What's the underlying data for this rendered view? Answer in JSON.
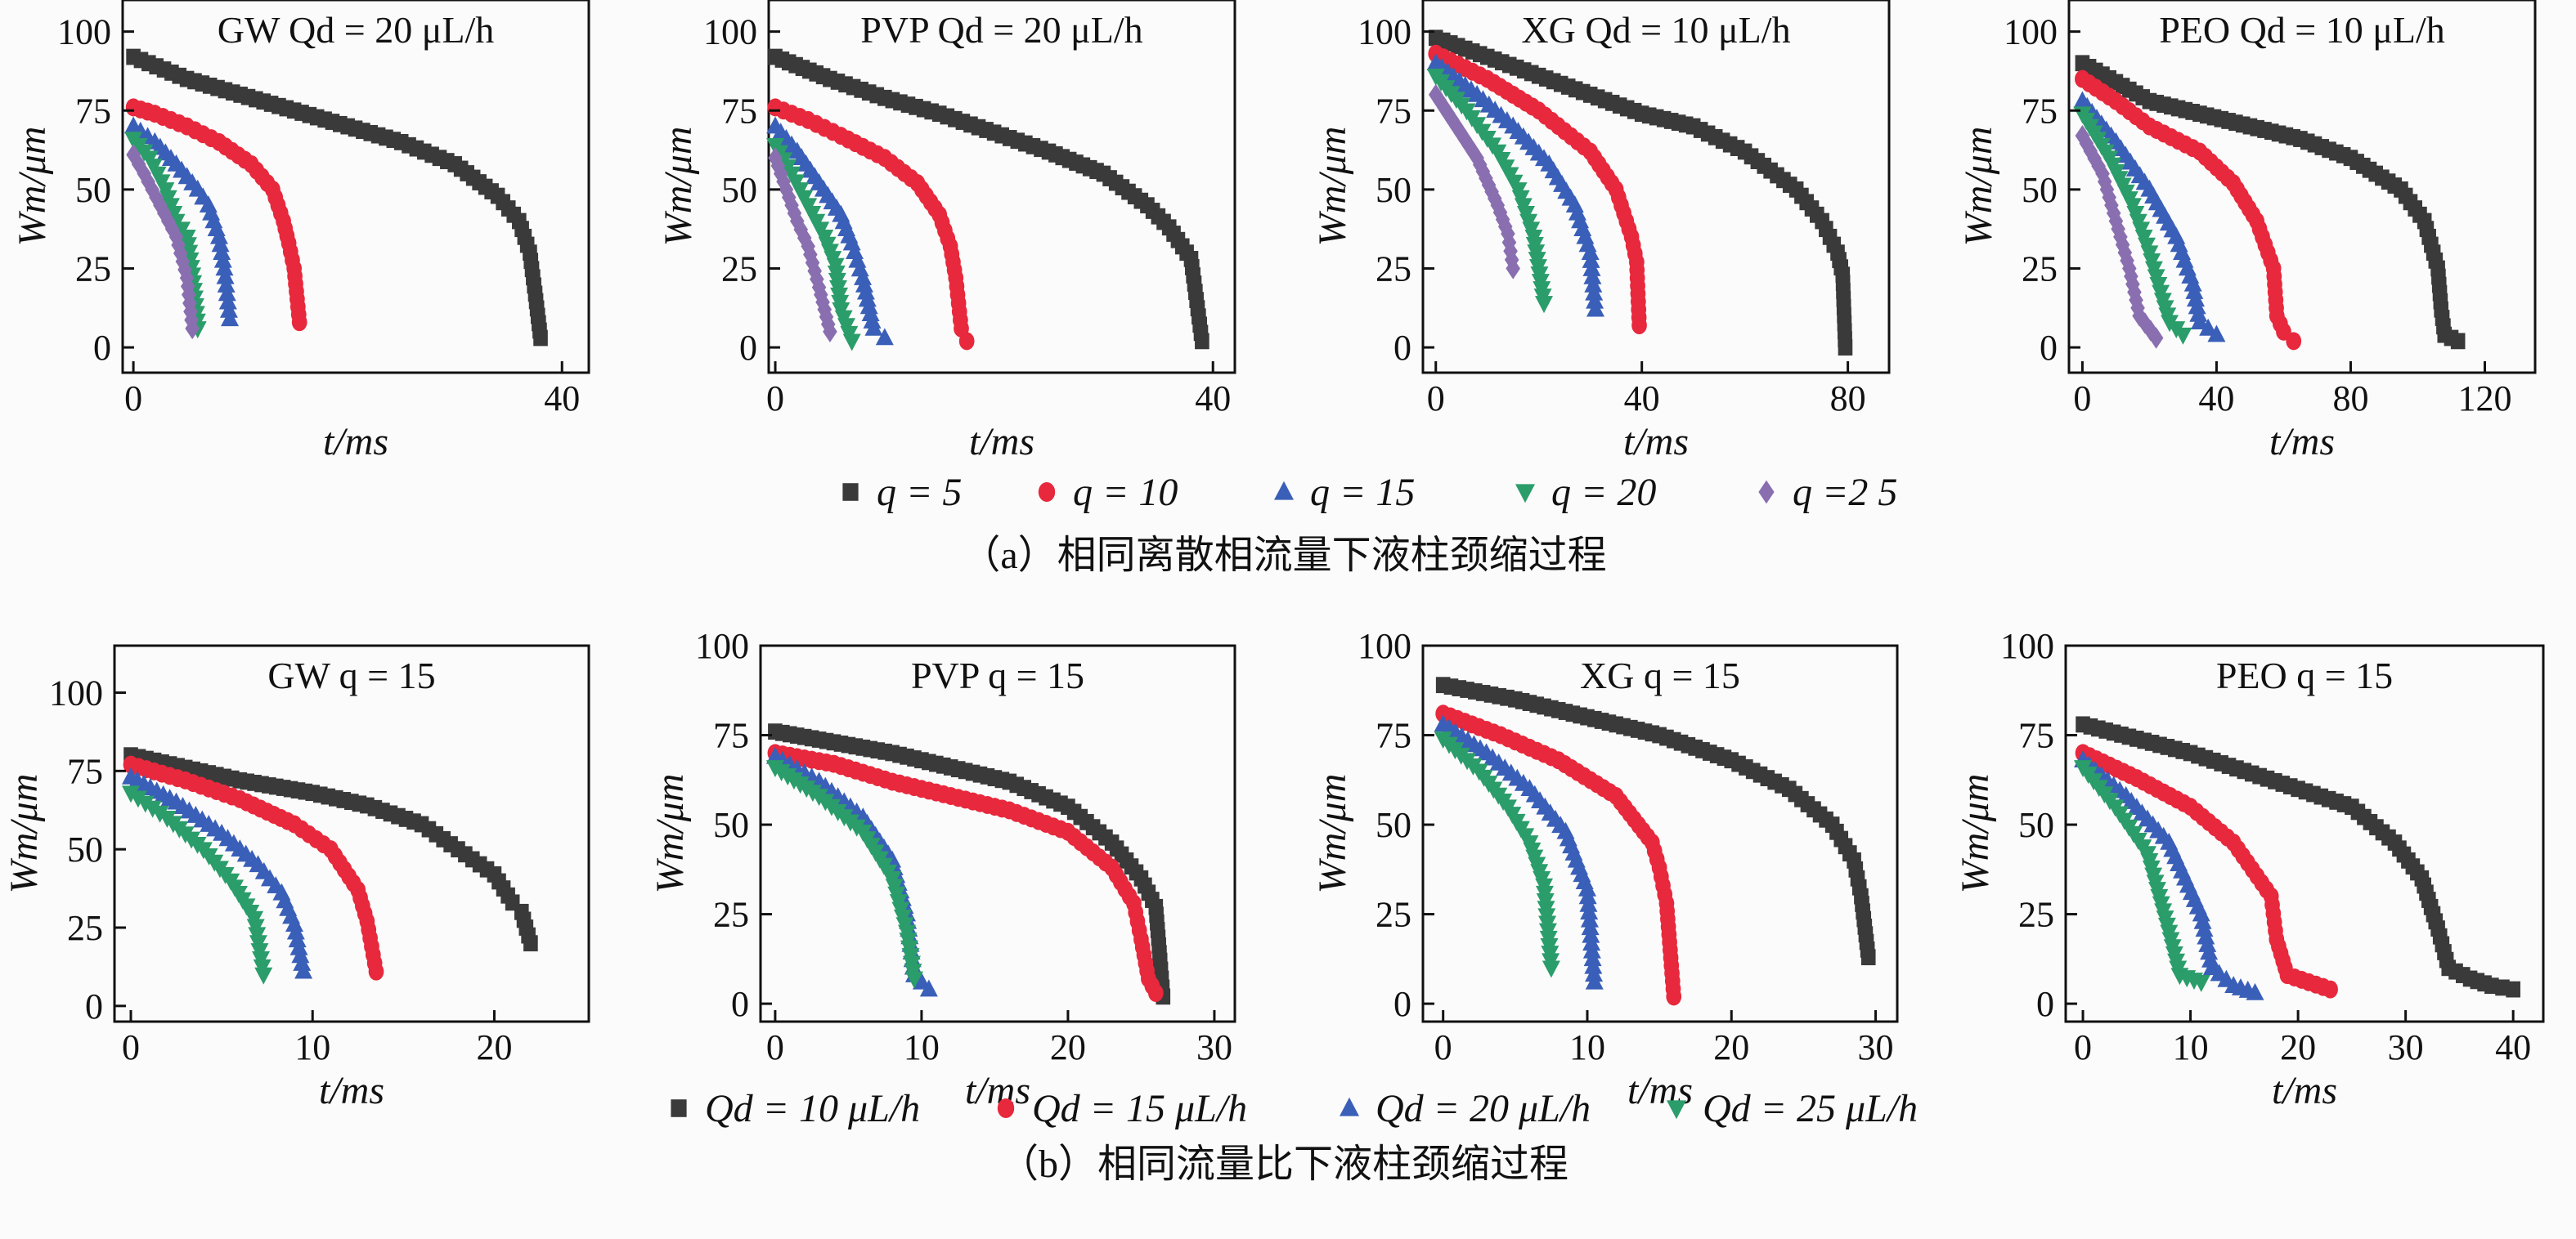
{
  "colors": {
    "s1": "#3a3a3a",
    "s2": "#e8283c",
    "s3": "#3a5fb8",
    "s4": "#2a9d6a",
    "s5": "#8a6fb0"
  },
  "chart_data": [
    {
      "type": "scatter",
      "group": "a",
      "title": "GW  Qd = 20 μL/h",
      "xlabel": "t/ms",
      "ylabel": "Wm/μm",
      "xlim": [
        -1,
        42.5
      ],
      "ylim": [
        -8,
        110
      ],
      "xticks": [
        0,
        40
      ],
      "yticks": [
        0,
        25,
        50,
        75,
        100
      ],
      "series": [
        {
          "name": "q = 5",
          "marker": "square",
          "t": [
            0,
            5,
            10,
            15,
            20,
            25,
            30,
            34,
            36,
            37,
            37.5,
            38
          ],
          "w": [
            92,
            85,
            80,
            75,
            70,
            65,
            58,
            48,
            40,
            30,
            17,
            3
          ]
        },
        {
          "name": "q = 10",
          "marker": "circle",
          "t": [
            0,
            2,
            5,
            8,
            11,
            13,
            14,
            14.5,
            15,
            15.5
          ],
          "w": [
            76,
            74,
            70,
            65,
            58,
            50,
            40,
            33,
            25,
            8
          ]
        },
        {
          "name": "q = 15",
          "marker": "triangle-up",
          "t": [
            0,
            2,
            4,
            6,
            7,
            8,
            8.5,
            9
          ],
          "w": [
            70,
            65,
            58,
            50,
            45,
            35,
            25,
            9
          ]
        },
        {
          "name": "q = 20",
          "marker": "triangle-down",
          "t": [
            0,
            1.5,
            3,
            4,
            5,
            5.5,
            6
          ],
          "w": [
            66,
            60,
            50,
            40,
            35,
            23,
            6
          ]
        },
        {
          "name": "q = 25",
          "marker": "diamond",
          "t": [
            0,
            1,
            2.5,
            4,
            5,
            5.5
          ],
          "w": [
            61,
            55,
            45,
            35,
            22,
            6
          ]
        }
      ]
    },
    {
      "type": "scatter",
      "group": "a",
      "title": "PVP  Qd = 20 μL/h",
      "xlabel": "t/ms",
      "ylabel": "Wm/μm",
      "xlim": [
        -0.6,
        42
      ],
      "ylim": [
        -8,
        110
      ],
      "xticks": [
        0,
        40
      ],
      "yticks": [
        0,
        25,
        50,
        75,
        100
      ],
      "series": [
        {
          "name": "q = 5",
          "marker": "square",
          "t": [
            0,
            5,
            10,
            15,
            20,
            25,
            30,
            34,
            36,
            38,
            38.5,
            39
          ],
          "w": [
            92,
            85,
            79,
            74,
            68,
            62,
            55,
            45,
            38,
            28,
            15,
            2
          ]
        },
        {
          "name": "q = 10",
          "marker": "circle",
          "t": [
            0,
            3,
            6,
            10,
            13,
            15,
            16,
            16.5,
            17,
            17.5
          ],
          "w": [
            76,
            72,
            67,
            60,
            52,
            42,
            32,
            22,
            6,
            2
          ]
        },
        {
          "name": "q = 15",
          "marker": "triangle-up",
          "t": [
            0,
            2,
            4,
            6,
            7,
            8,
            9,
            10
          ],
          "w": [
            70,
            62,
            52,
            42,
            33,
            22,
            6,
            3
          ]
        },
        {
          "name": "q = 20",
          "marker": "triangle-down",
          "t": [
            0,
            1.5,
            3,
            4.5,
            5.5,
            6,
            7
          ],
          "w": [
            64,
            55,
            45,
            35,
            26,
            12,
            2
          ]
        },
        {
          "name": "q = 25",
          "marker": "diamond",
          "t": [
            0,
            1,
            2,
            3,
            4,
            5
          ],
          "w": [
            60,
            50,
            40,
            32,
            19,
            5
          ]
        }
      ]
    },
    {
      "type": "scatter",
      "group": "a",
      "title": "XG  Qd = 10 μL/h",
      "xlabel": "t/ms",
      "ylabel": "Wm/μm",
      "xlim": [
        -2.5,
        88
      ],
      "ylim": [
        -8,
        110
      ],
      "xticks": [
        0,
        40,
        80
      ],
      "yticks": [
        0,
        25,
        50,
        75,
        100
      ],
      "series": [
        {
          "name": "q = 5",
          "marker": "square",
          "t": [
            0,
            10,
            20,
            30,
            40,
            50,
            60,
            70,
            75,
            78,
            79,
            79.5
          ],
          "w": [
            98,
            92,
            86,
            80,
            74,
            70,
            62,
            50,
            40,
            30,
            23,
            0
          ]
        },
        {
          "name": "q = 10",
          "marker": "circle",
          "t": [
            0,
            10,
            20,
            30,
            35,
            38,
            39,
            39.5
          ],
          "w": [
            93,
            85,
            75,
            62,
            50,
            35,
            27,
            7
          ]
        },
        {
          "name": "q = 15",
          "marker": "triangle-up",
          "t": [
            0,
            8,
            15,
            22,
            27,
            30,
            31
          ],
          "w": [
            90,
            80,
            70,
            58,
            45,
            30,
            12
          ]
        },
        {
          "name": "q = 20",
          "marker": "triangle-down",
          "t": [
            0,
            6,
            12,
            16,
            19,
            21
          ],
          "w": [
            86,
            75,
            62,
            50,
            35,
            14
          ]
        },
        {
          "name": "q = 25",
          "marker": "diamond",
          "t": [
            0,
            4,
            8,
            12,
            14,
            15
          ],
          "w": [
            80,
            70,
            60,
            45,
            36,
            25
          ]
        }
      ]
    },
    {
      "type": "scatter",
      "group": "a",
      "title": "PEO  Qd = 10 μL/h",
      "xlabel": "t/ms",
      "ylabel": "Wm/μm",
      "xlim": [
        -4,
        135
      ],
      "ylim": [
        -8,
        110
      ],
      "xticks": [
        0,
        40,
        80,
        120
      ],
      "yticks": [
        0,
        25,
        50,
        75,
        100
      ],
      "series": [
        {
          "name": "q = 5",
          "marker": "square",
          "t": [
            0,
            10,
            20,
            35,
            50,
            65,
            80,
            95,
            102,
            106,
            107,
            108,
            112
          ],
          "w": [
            90,
            84,
            78,
            74,
            70,
            66,
            60,
            50,
            40,
            25,
            12,
            4,
            2
          ]
        },
        {
          "name": "q = 10",
          "marker": "circle",
          "t": [
            0,
            10,
            20,
            35,
            45,
            52,
            57,
            58,
            60,
            63
          ],
          "w": [
            85,
            78,
            70,
            62,
            52,
            40,
            25,
            10,
            5,
            2
          ]
        },
        {
          "name": "q = 15",
          "marker": "triangle-up",
          "t": [
            0,
            10,
            20,
            28,
            33,
            35,
            40
          ],
          "w": [
            78,
            65,
            50,
            35,
            20,
            8,
            4
          ]
        },
        {
          "name": "q = 20",
          "marker": "triangle-down",
          "t": [
            0,
            8,
            15,
            20,
            24,
            26,
            30
          ],
          "w": [
            74,
            60,
            45,
            30,
            15,
            8,
            4
          ]
        },
        {
          "name": "q = 25",
          "marker": "diamond",
          "t": [
            0,
            6,
            10,
            14,
            17,
            22
          ],
          "w": [
            67,
            55,
            40,
            25,
            10,
            3
          ]
        }
      ]
    },
    {
      "type": "scatter",
      "group": "b",
      "title": "GW  q = 15",
      "xlabel": "t/ms",
      "ylabel": "Wm/μm",
      "xlim": [
        -0.9,
        25.2
      ],
      "ylim": [
        -5,
        115
      ],
      "xticks": [
        0,
        10,
        20
      ],
      "yticks": [
        0,
        25,
        50,
        75,
        100
      ],
      "series": [
        {
          "name": "Qd = 10 μL/h",
          "marker": "square",
          "t": [
            0,
            3,
            6,
            10,
            13,
            16,
            18,
            20,
            21,
            21.5,
            22
          ],
          "w": [
            80,
            76,
            72,
            68,
            64,
            58,
            50,
            42,
            33,
            30,
            20
          ]
        },
        {
          "name": "Qd = 15 μL/h",
          "marker": "circle",
          "t": [
            0,
            3,
            6,
            9,
            11,
            12.5,
            13,
            13.5
          ],
          "w": [
            77,
            72,
            66,
            58,
            50,
            37,
            27,
            11
          ]
        },
        {
          "name": "Qd = 20 μL/h",
          "marker": "triangle-up",
          "t": [
            0,
            2.5,
            5,
            7,
            8.3,
            9,
            9.5
          ],
          "w": [
            73,
            65,
            55,
            45,
            36,
            26,
            11
          ]
        },
        {
          "name": "Qd = 25 μL/h",
          "marker": "triangle-down",
          "t": [
            0,
            2,
            4,
            5.5,
            6.8,
            7.3
          ],
          "w": [
            68,
            60,
            50,
            40,
            28,
            10
          ]
        }
      ]
    },
    {
      "type": "scatter",
      "group": "b",
      "title": "PVP  q = 15",
      "xlabel": "t/ms",
      "ylabel": "Wm/μm",
      "xlim": [
        -1,
        31.4
      ],
      "ylim": [
        -5,
        100
      ],
      "xticks": [
        0,
        10,
        20,
        30
      ],
      "yticks": [
        0,
        25,
        50,
        75,
        100
      ],
      "series": [
        {
          "name": "Qd = 10 μL/h",
          "marker": "square",
          "t": [
            0,
            4,
            8,
            12,
            16,
            20,
            23,
            25,
            26,
            26.3,
            26.5
          ],
          "w": [
            76,
            73,
            70,
            66,
            62,
            55,
            45,
            35,
            27,
            12,
            2
          ]
        },
        {
          "name": "Qd = 15 μL/h",
          "marker": "circle",
          "t": [
            0,
            4,
            8,
            12,
            16,
            20,
            23,
            24.5,
            25,
            25.5,
            26
          ],
          "w": [
            70,
            67,
            62,
            58,
            54,
            48,
            38,
            28,
            18,
            7,
            3
          ]
        },
        {
          "name": "Qd = 20 μL/h",
          "marker": "triangle-up",
          "t": [
            0,
            3,
            6,
            8,
            9,
            9.5,
            10.5
          ],
          "w": [
            69,
            62,
            52,
            40,
            25,
            8,
            4
          ]
        },
        {
          "name": "Qd = 25 μL/h",
          "marker": "triangle-down",
          "t": [
            0,
            3,
            6,
            8,
            9,
            9.5
          ],
          "w": [
            66,
            58,
            48,
            35,
            20,
            7
          ]
        }
      ]
    },
    {
      "type": "scatter",
      "group": "b",
      "title": "XG  q = 15",
      "xlabel": "t/ms",
      "ylabel": "Wm/μm",
      "xlim": [
        -1.4,
        31.5
      ],
      "ylim": [
        -5,
        100
      ],
      "xticks": [
        0,
        10,
        20,
        30
      ],
      "yticks": [
        0,
        25,
        50,
        75,
        100
      ],
      "series": [
        {
          "name": "Qd = 10 μL/h",
          "marker": "square",
          "t": [
            0,
            5,
            10,
            15,
            20,
            24,
            27,
            28.5,
            29,
            29.5
          ],
          "w": [
            89,
            85,
            80,
            75,
            68,
            60,
            50,
            40,
            30,
            13
          ]
        },
        {
          "name": "Qd = 15 μL/h",
          "marker": "circle",
          "t": [
            0,
            4,
            8,
            12,
            14.5,
            15,
            15.5,
            16
          ],
          "w": [
            81,
            75,
            68,
            58,
            45,
            38,
            28,
            2
          ]
        },
        {
          "name": "Qd = 20 μL/h",
          "marker": "triangle-up",
          "t": [
            0,
            3,
            6,
            8.5,
            10,
            10.5
          ],
          "w": [
            78,
            70,
            60,
            48,
            32,
            6
          ]
        },
        {
          "name": "Qd = 25 μL/h",
          "marker": "triangle-down",
          "t": [
            0,
            2.5,
            4.5,
            6,
            7,
            7.5
          ],
          "w": [
            74,
            65,
            55,
            45,
            33,
            10
          ]
        }
      ]
    },
    {
      "type": "scatter",
      "group": "b",
      "title": "PEO  q = 15",
      "xlabel": "t/ms",
      "ylabel": "Wm/μm",
      "xlim": [
        -1.6,
        42.8
      ],
      "ylim": [
        -5,
        100
      ],
      "xticks": [
        0,
        10,
        20,
        30,
        40
      ],
      "yticks": [
        0,
        25,
        50,
        75,
        100
      ],
      "series": [
        {
          "name": "Qd = 10 μL/h",
          "marker": "square",
          "t": [
            0,
            5,
            10,
            15,
            20,
            25,
            29,
            31.5,
            33,
            34,
            36,
            38,
            40
          ],
          "w": [
            78,
            74,
            70,
            65,
            60,
            55,
            45,
            35,
            21,
            10,
            7,
            5,
            4
          ]
        },
        {
          "name": "Qd = 15 μL/h",
          "marker": "circle",
          "t": [
            0,
            5,
            10,
            14,
            17.5,
            18,
            19,
            21,
            23
          ],
          "w": [
            70,
            63,
            55,
            45,
            30,
            18,
            8,
            6,
            4
          ]
        },
        {
          "name": "Qd = 20 μL/h",
          "marker": "triangle-up",
          "t": [
            0,
            4,
            8,
            11,
            12,
            14,
            16
          ],
          "w": [
            68,
            58,
            45,
            25,
            10,
            5,
            3
          ]
        },
        {
          "name": "Qd = 25 μL/h",
          "marker": "triangle-down",
          "t": [
            0,
            3,
            6,
            8,
            9,
            11
          ],
          "w": [
            66,
            55,
            42,
            20,
            8,
            6
          ]
        }
      ]
    }
  ],
  "legend_a": [
    "q = 5",
    "q = 10",
    "q = 15",
    "q = 20",
    "q =2 5"
  ],
  "legend_b": [
    "Qd = 10 μL/h",
    "Qd = 15 μL/h",
    "Qd = 20 μL/h",
    "Qd = 25 μL/h"
  ],
  "caption_a": "（a）相同离散相流量下液柱颈缩过程",
  "caption_b": "（b）相同流量比下液柱颈缩过程"
}
